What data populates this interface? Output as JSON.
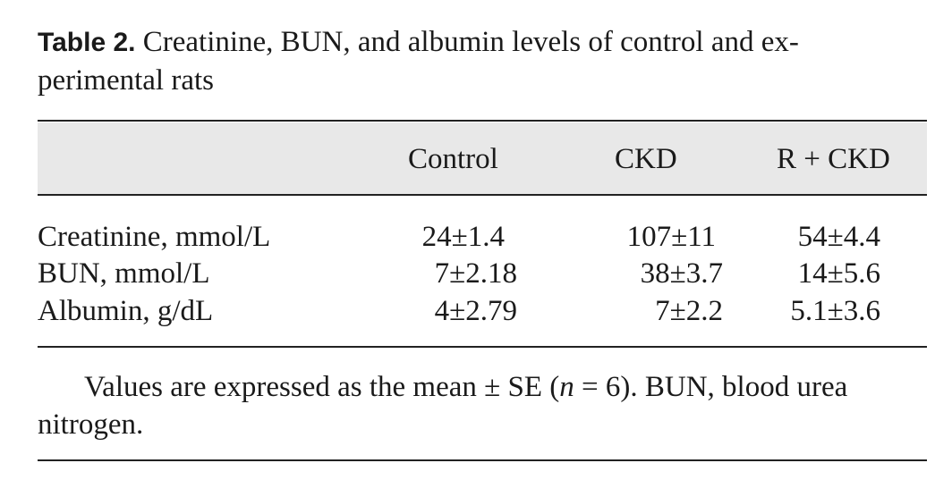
{
  "table": {
    "caption_label": "Table 2.",
    "caption_text": " Creatinine, BUN, and albumin levels of control and ex-perimental rats",
    "columns": [
      "Control",
      "CKD",
      "R + CKD"
    ],
    "rows": [
      {
        "label": "Creatinine, mmol/L",
        "values": [
          "24±1.4",
          "107±11",
          "54±4.4"
        ]
      },
      {
        "label": "BUN, mmol/L",
        "values": [
          "7±2.18",
          "38±3.7",
          "14±5.6"
        ]
      },
      {
        "label": "Albumin, g/dL",
        "values": [
          "4±2.79",
          "7±2.2",
          "5.1±3.6"
        ]
      }
    ],
    "footnote": {
      "part1": "Values are expressed as the mean ± SE (",
      "n_symbol": "n",
      "part2": " = 6). BUN, blood urea nitrogen."
    }
  }
}
